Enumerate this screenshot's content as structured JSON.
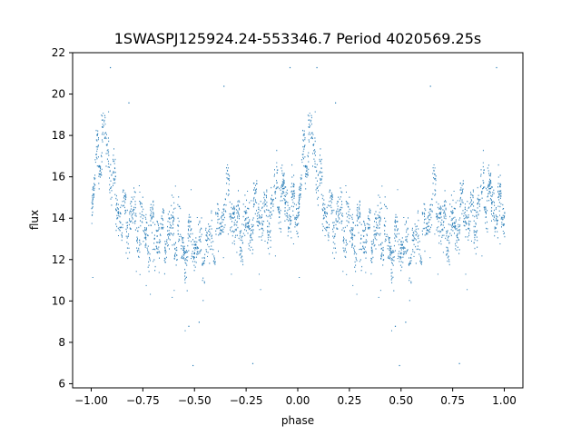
{
  "chart_data": {
    "type": "scatter",
    "title": "1SWASPJ125924.24-553346.7 Period 4020569.25s",
    "xlabel": "phase",
    "ylabel": "flux",
    "xlim": [
      -1.09,
      1.09
    ],
    "ylim": [
      5.8,
      22.0
    ],
    "xticks": [
      -1.0,
      -0.75,
      -0.5,
      -0.25,
      0.0,
      0.25,
      0.5,
      0.75,
      1.0
    ],
    "xtick_labels": [
      "−1.00",
      "−0.75",
      "−0.50",
      "−0.25",
      "0.00",
      "0.25",
      "0.50",
      "0.75",
      "1.00"
    ],
    "yticks": [
      6,
      8,
      10,
      12,
      14,
      16,
      18,
      20,
      22
    ],
    "ytick_labels": [
      "6",
      "8",
      "10",
      "12",
      "14",
      "16",
      "18",
      "20",
      "22"
    ],
    "grid": false,
    "marker_color": "#1f77b4",
    "light_curve": {
      "description_note": "approximate median flux vs phase; curve is mirrored at phase+1",
      "phase": [
        0.0,
        0.03,
        0.06,
        0.08,
        0.1,
        0.12,
        0.15,
        0.2,
        0.25,
        0.3,
        0.35,
        0.4,
        0.45,
        0.5,
        0.55,
        0.6,
        0.63,
        0.66,
        0.7,
        0.75,
        0.8,
        0.85,
        0.9,
        0.95,
        1.0
      ],
      "flux": [
        14.5,
        17.0,
        18.0,
        17.0,
        16.0,
        15.0,
        14.0,
        14.0,
        13.5,
        13.3,
        13.0,
        13.5,
        12.5,
        12.7,
        12.5,
        13.0,
        14.0,
        15.0,
        13.5,
        13.5,
        14.5,
        14.0,
        15.5,
        14.5,
        14.5
      ]
    },
    "notable_points": {
      "phase": [
        0.09,
        0.96,
        0.18,
        0.64,
        0.52,
        0.49,
        0.47,
        0.78
      ],
      "flux": [
        21.3,
        21.3,
        19.6,
        20.4,
        9.0,
        6.9,
        8.8,
        7.0
      ]
    }
  }
}
